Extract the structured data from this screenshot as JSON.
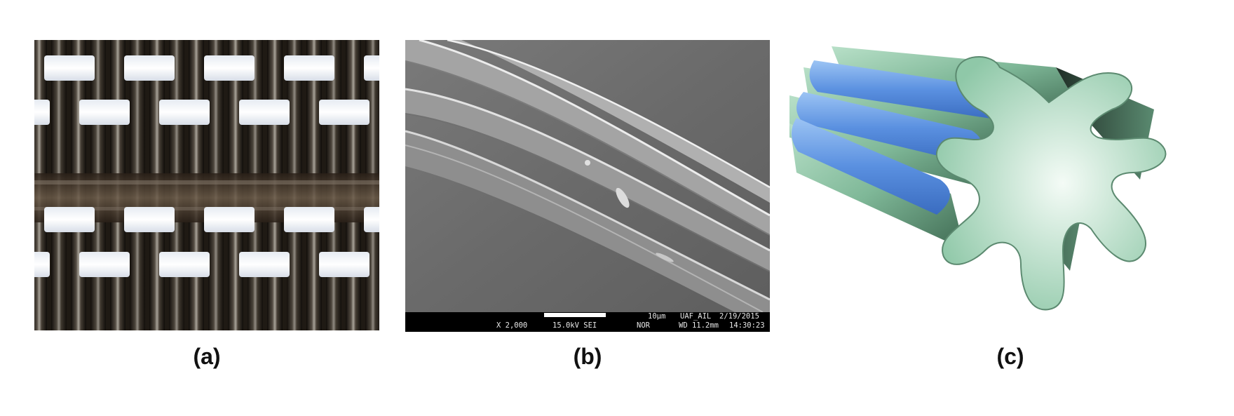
{
  "captions": {
    "a": "(a)",
    "b": "(b)",
    "c": "(c)"
  },
  "sem_info": {
    "scale": "10µm",
    "magnification": "X 2,000",
    "voltage": "15.0kV SEI",
    "lab": "UAF_AIL",
    "date": "2/19/2015",
    "mode": "NOR",
    "working_distance": "WD 11.2mm",
    "time": "14:30:23"
  },
  "colors": {
    "fabric_dark": "#1f1a14",
    "fabric_white": "#f2f4f8",
    "sem_gray": "#6e6e6e",
    "fiber_green": "#8fc8a8",
    "fiber_blue": "#5a90e0"
  }
}
